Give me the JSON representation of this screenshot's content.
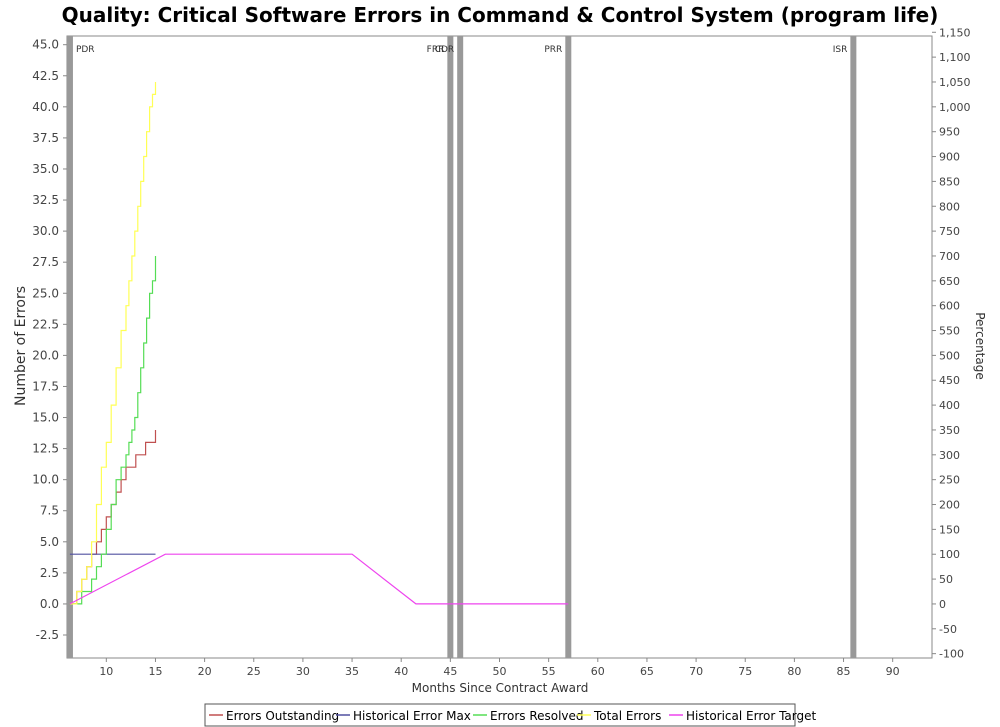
{
  "chart_data": {
    "type": "line",
    "title": "Quality: Critical Software Errors in Command & Control System (program life)",
    "xlabel": "Months Since Contract Award",
    "ylabel": "Number of Errors",
    "y2label": "Percentage",
    "xlim": [
      6,
      94
    ],
    "ylim": [
      -4.35,
      45.7
    ],
    "y2lim": [
      -108.75,
      1142.5
    ],
    "x_ticks": [
      "10",
      "15",
      "20",
      "25",
      "30",
      "35",
      "40",
      "45",
      "50",
      "55",
      "60",
      "65",
      "70",
      "75",
      "80",
      "85",
      "90"
    ],
    "y_ticks": [
      "-2.5",
      "0.0",
      "2.5",
      "5.0",
      "7.5",
      "10.0",
      "12.5",
      "15.0",
      "17.5",
      "20.0",
      "22.5",
      "25.0",
      "27.5",
      "30.0",
      "32.5",
      "35.0",
      "37.5",
      "40.0",
      "42.5",
      "45.0"
    ],
    "y2_ticks": [
      "-100",
      "-50",
      "0",
      "50",
      "100",
      "150",
      "200",
      "250",
      "300",
      "350",
      "400",
      "450",
      "500",
      "550",
      "600",
      "650",
      "700",
      "750",
      "800",
      "850",
      "900",
      "950",
      "1,000",
      "1,050",
      "1,100",
      "1,150"
    ],
    "grid": false,
    "legend_position": "bottom",
    "milestones": [
      {
        "label": "PDR",
        "x": 6.3
      },
      {
        "label": "FRR",
        "x": 45.0
      },
      {
        "label": "CDR",
        "x": 46.0
      },
      {
        "label": "PRR",
        "x": 57.0
      },
      {
        "label": "ISR",
        "x": 86.0
      }
    ],
    "series": [
      {
        "name": "Errors Outstanding",
        "color": "#c05050",
        "step": true,
        "x": [
          6.3,
          7.0,
          7.5,
          8.0,
          8.5,
          9.0,
          9.5,
          10.0,
          10.5,
          11.0,
          11.5,
          12.0,
          12.5,
          13.0,
          13.5,
          14.0,
          14.5,
          15.0
        ],
        "y": [
          0,
          1,
          2,
          3,
          4,
          5,
          6,
          7,
          8,
          9,
          10,
          11,
          11,
          12,
          12,
          13,
          13,
          14
        ]
      },
      {
        "name": "Historical Error Max",
        "color": "#5050a0",
        "step": false,
        "x": [
          6.3,
          15.0
        ],
        "y": [
          4,
          4
        ]
      },
      {
        "name": "Errors Resolved",
        "color": "#55dd55",
        "step": true,
        "x": [
          6.3,
          7.5,
          8.0,
          8.5,
          9.0,
          9.5,
          10.0,
          10.5,
          11.0,
          11.5,
          12.0,
          12.3,
          12.6,
          12.9,
          13.2,
          13.5,
          13.8,
          14.1,
          14.4,
          14.7,
          15.0
        ],
        "y": [
          0,
          1,
          1,
          2,
          3,
          4,
          6,
          8,
          10,
          11,
          12,
          13,
          14,
          15,
          17,
          19,
          21,
          23,
          25,
          26,
          28
        ]
      },
      {
        "name": "Total Errors",
        "color": "#ffff55",
        "step": true,
        "x": [
          6.3,
          7.0,
          7.5,
          8.0,
          8.5,
          9.0,
          9.5,
          10.0,
          10.5,
          11.0,
          11.5,
          12.0,
          12.3,
          12.6,
          12.9,
          13.2,
          13.5,
          13.8,
          14.1,
          14.4,
          14.7,
          15.0
        ],
        "y": [
          0,
          1,
          2,
          3,
          5,
          8,
          11,
          13,
          16,
          19,
          22,
          24,
          26,
          28,
          30,
          32,
          34,
          36,
          38,
          40,
          41,
          42
        ]
      },
      {
        "name": "Historical Error Target",
        "color": "#ee44ee",
        "step": false,
        "x": [
          6.3,
          16.0,
          35.0,
          41.5,
          57.0
        ],
        "y": [
          0,
          4,
          4,
          0,
          0
        ]
      }
    ]
  }
}
